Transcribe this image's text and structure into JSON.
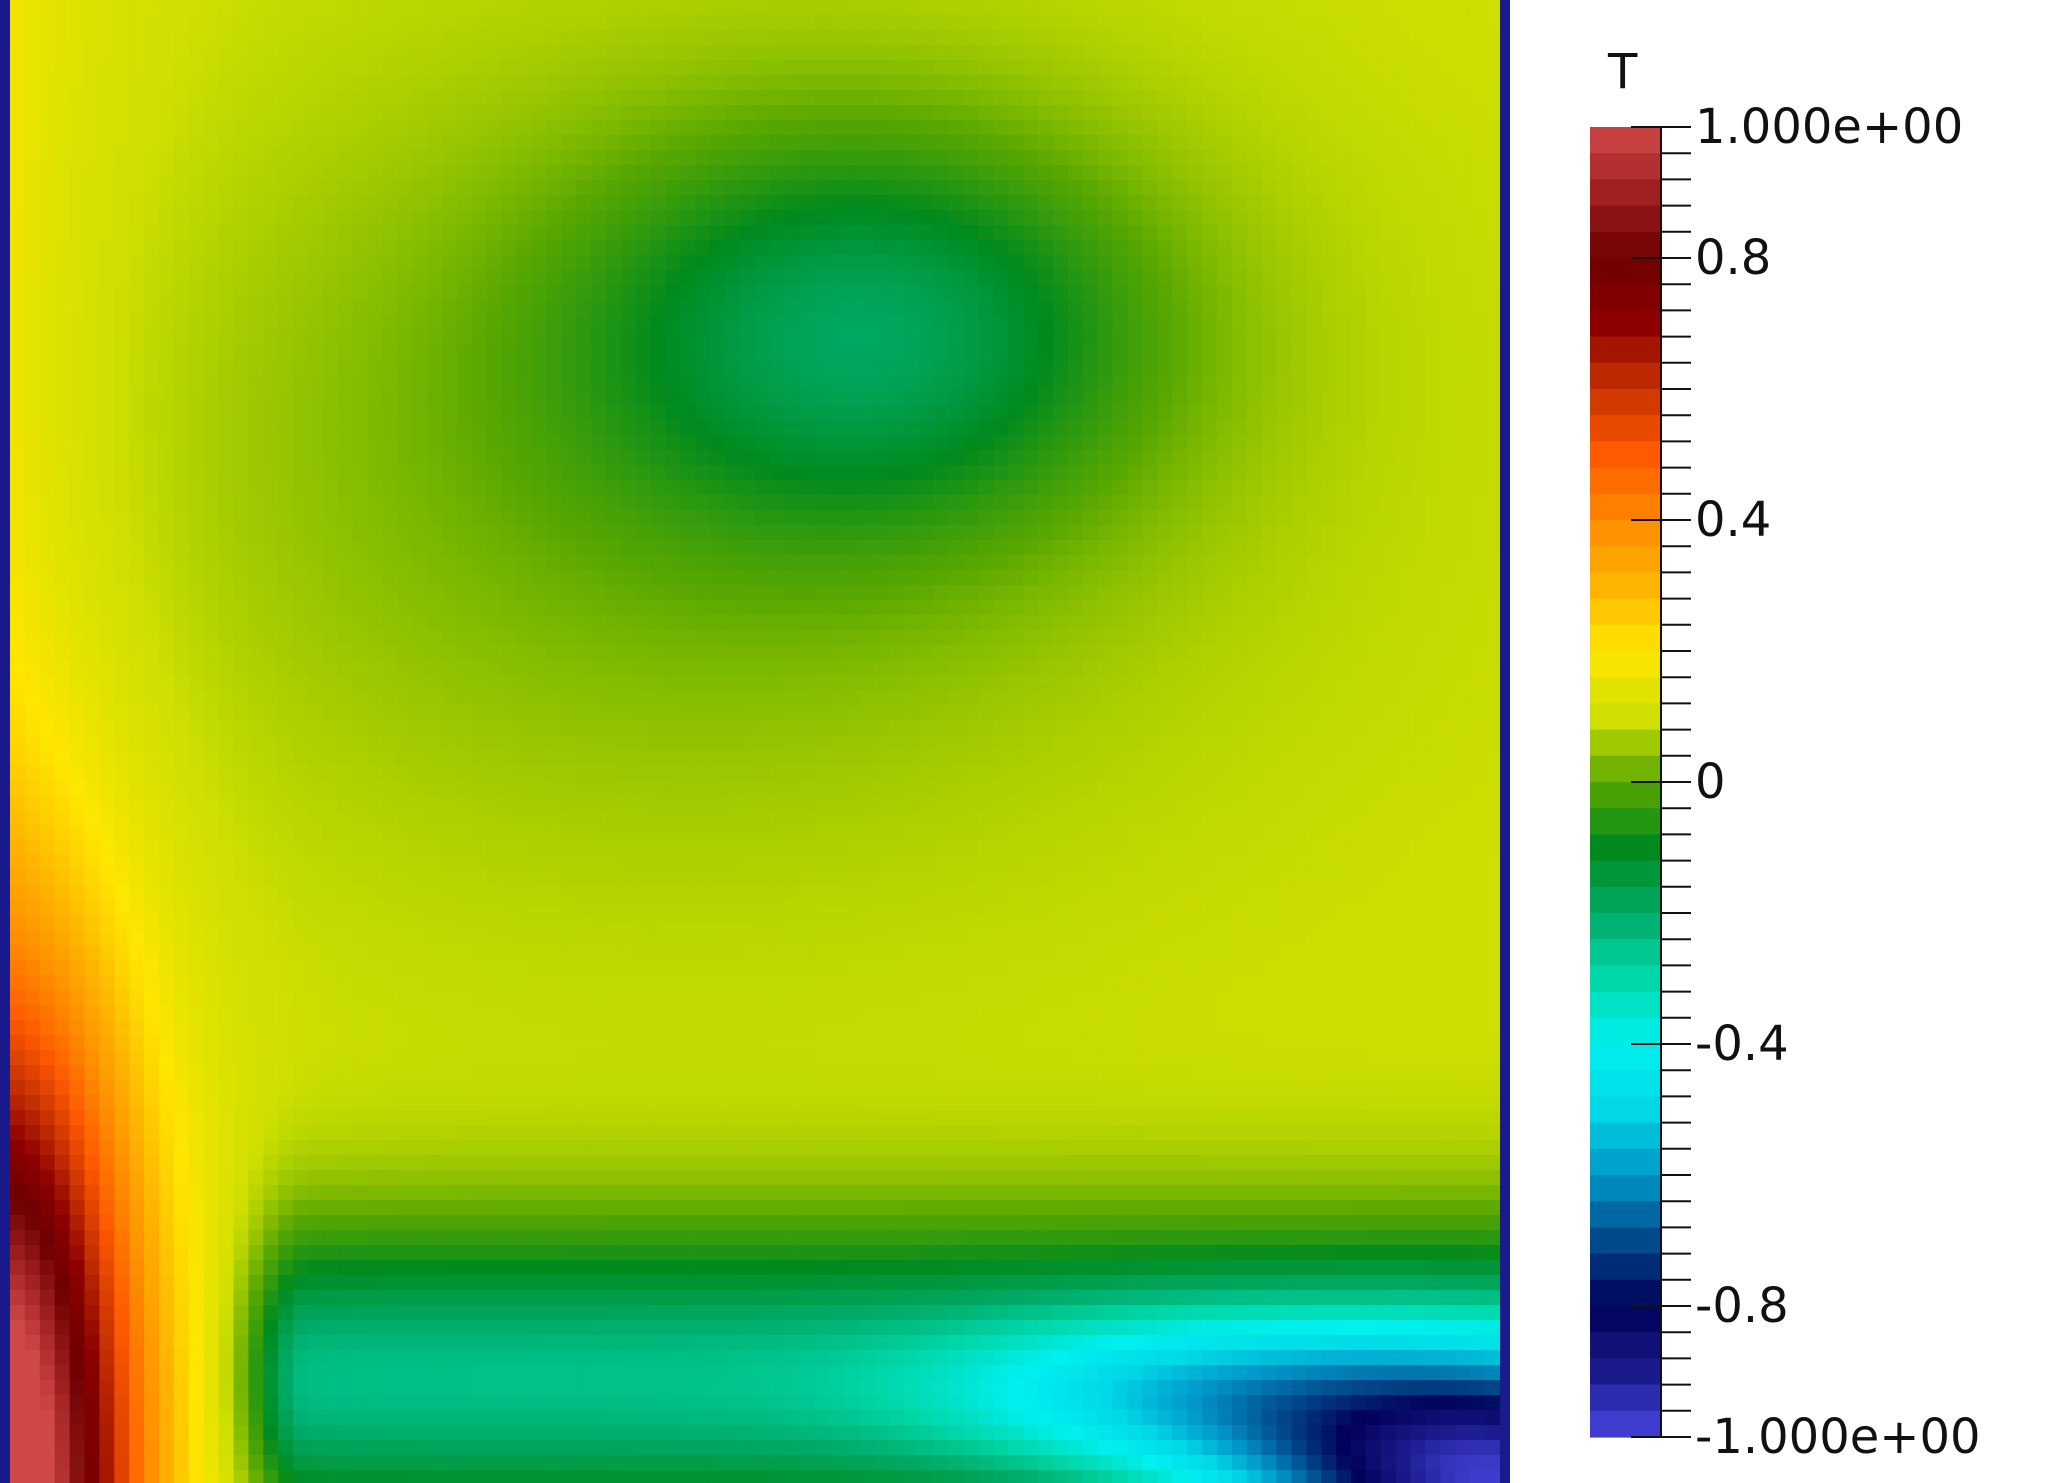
{
  "field": {
    "name": "temperature-field",
    "colormap": [
      {
        "v": -1.0,
        "c": "#4a45e0"
      },
      {
        "v": -0.9,
        "c": "#1a1a8c"
      },
      {
        "v": -0.8,
        "c": "#000058"
      },
      {
        "v": -0.7,
        "c": "#004a8c"
      },
      {
        "v": -0.6,
        "c": "#0096c8"
      },
      {
        "v": -0.5,
        "c": "#00d8e6"
      },
      {
        "v": -0.4,
        "c": "#00f0f0"
      },
      {
        "v": -0.3,
        "c": "#00d8aa"
      },
      {
        "v": -0.2,
        "c": "#00aa66"
      },
      {
        "v": -0.1,
        "c": "#008a1e"
      },
      {
        "v": 0.0,
        "c": "#5aa800"
      },
      {
        "v": 0.1,
        "c": "#cfe000"
      },
      {
        "v": 0.2,
        "c": "#ffe600"
      },
      {
        "v": 0.3,
        "c": "#ffb400"
      },
      {
        "v": 0.4,
        "c": "#ff8a00"
      },
      {
        "v": 0.5,
        "c": "#ff5a00"
      },
      {
        "v": 0.6,
        "c": "#c83200"
      },
      {
        "v": 0.7,
        "c": "#8c0000"
      },
      {
        "v": 0.8,
        "c": "#6e0000"
      },
      {
        "v": 0.9,
        "c": "#a02020"
      },
      {
        "v": 1.0,
        "c": "#d04848"
      }
    ],
    "border_color": "#1a1a8c"
  },
  "legend": {
    "title": "T",
    "min": -1.0,
    "max": 1.0,
    "ticks": [
      {
        "value": 1.0,
        "label": "1.000e+00"
      },
      {
        "value": 0.8,
        "label": "0.8"
      },
      {
        "value": 0.4,
        "label": "0.4"
      },
      {
        "value": 0.0,
        "label": "0"
      },
      {
        "value": -0.4,
        "label": "-0.4"
      },
      {
        "value": -0.8,
        "label": "-0.8"
      },
      {
        "value": -1.0,
        "label": "-1.000e+00"
      }
    ],
    "minor_step": 0.04
  }
}
